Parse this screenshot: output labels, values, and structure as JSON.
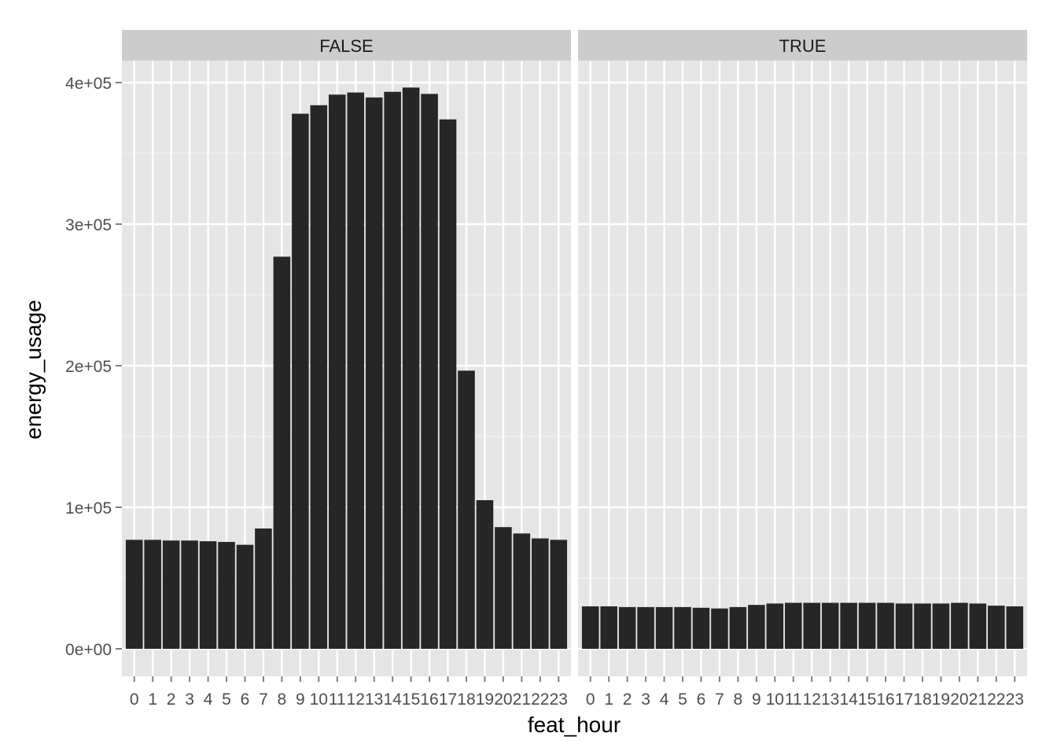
{
  "chart_data": {
    "type": "bar",
    "facet_variable": "",
    "xlabel": "feat_hour",
    "ylabel": "energy_usage",
    "ylim": [
      0,
      420000
    ],
    "y_ticks": [
      0,
      100000,
      200000,
      300000,
      400000
    ],
    "y_tick_labels": [
      "0e+00",
      "1e+05",
      "2e+05",
      "3e+05",
      "4e+05"
    ],
    "categories": [
      "0",
      "1",
      "2",
      "3",
      "4",
      "5",
      "6",
      "7",
      "8",
      "9",
      "10",
      "11",
      "12",
      "13",
      "14",
      "15",
      "16",
      "17",
      "18",
      "19",
      "20",
      "21",
      "22",
      "23"
    ],
    "grid": true,
    "colors": {
      "panel_bg": "#e5e5e5",
      "grid_major": "#ffffff",
      "grid_minor": "#f2f2f2",
      "bar": "#262626",
      "strip_bg": "#cccccc"
    },
    "panels": [
      {
        "label": "FALSE",
        "values": [
          77000,
          77000,
          76500,
          76500,
          76000,
          75500,
          73500,
          85000,
          277000,
          378000,
          384000,
          391500,
          393000,
          389500,
          393500,
          396500,
          392000,
          374000,
          196500,
          105000,
          86000,
          81500,
          78000,
          77000
        ]
      },
      {
        "label": "TRUE",
        "values": [
          30000,
          30000,
          29500,
          29500,
          29500,
          29500,
          29000,
          28500,
          29500,
          31000,
          32000,
          32500,
          32500,
          32500,
          32500,
          32500,
          32500,
          32000,
          32000,
          32000,
          32500,
          32000,
          30500,
          30000
        ]
      }
    ]
  }
}
